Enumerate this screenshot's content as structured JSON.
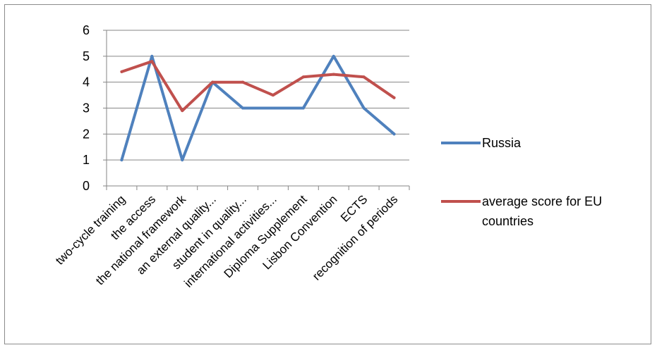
{
  "chart_data": {
    "type": "line",
    "title": "",
    "xlabel": "",
    "ylabel": "",
    "ylim": [
      0,
      6
    ],
    "yticks": [
      0,
      1,
      2,
      3,
      4,
      5,
      6
    ],
    "grid": "horizontal",
    "legend_position": "right",
    "categories": [
      "two-cycle training",
      "the access",
      "the national framework",
      "an external quality...",
      "student in quality...",
      "international activities...",
      "Diploma Supplement",
      "Lisbon Convention",
      "ECTS",
      "recognition of periods"
    ],
    "series": [
      {
        "name": "Russia",
        "color": "#4f81bd",
        "values": [
          1,
          5,
          1,
          4,
          3,
          3,
          3,
          5,
          3,
          2
        ]
      },
      {
        "name": "average score for EU countries",
        "name_lines": [
          "average score for EU",
          "countries"
        ],
        "color": "#c0504d",
        "values": [
          4.4,
          4.8,
          2.9,
          4.0,
          4.0,
          3.5,
          4.2,
          4.3,
          4.2,
          3.4
        ]
      }
    ]
  }
}
